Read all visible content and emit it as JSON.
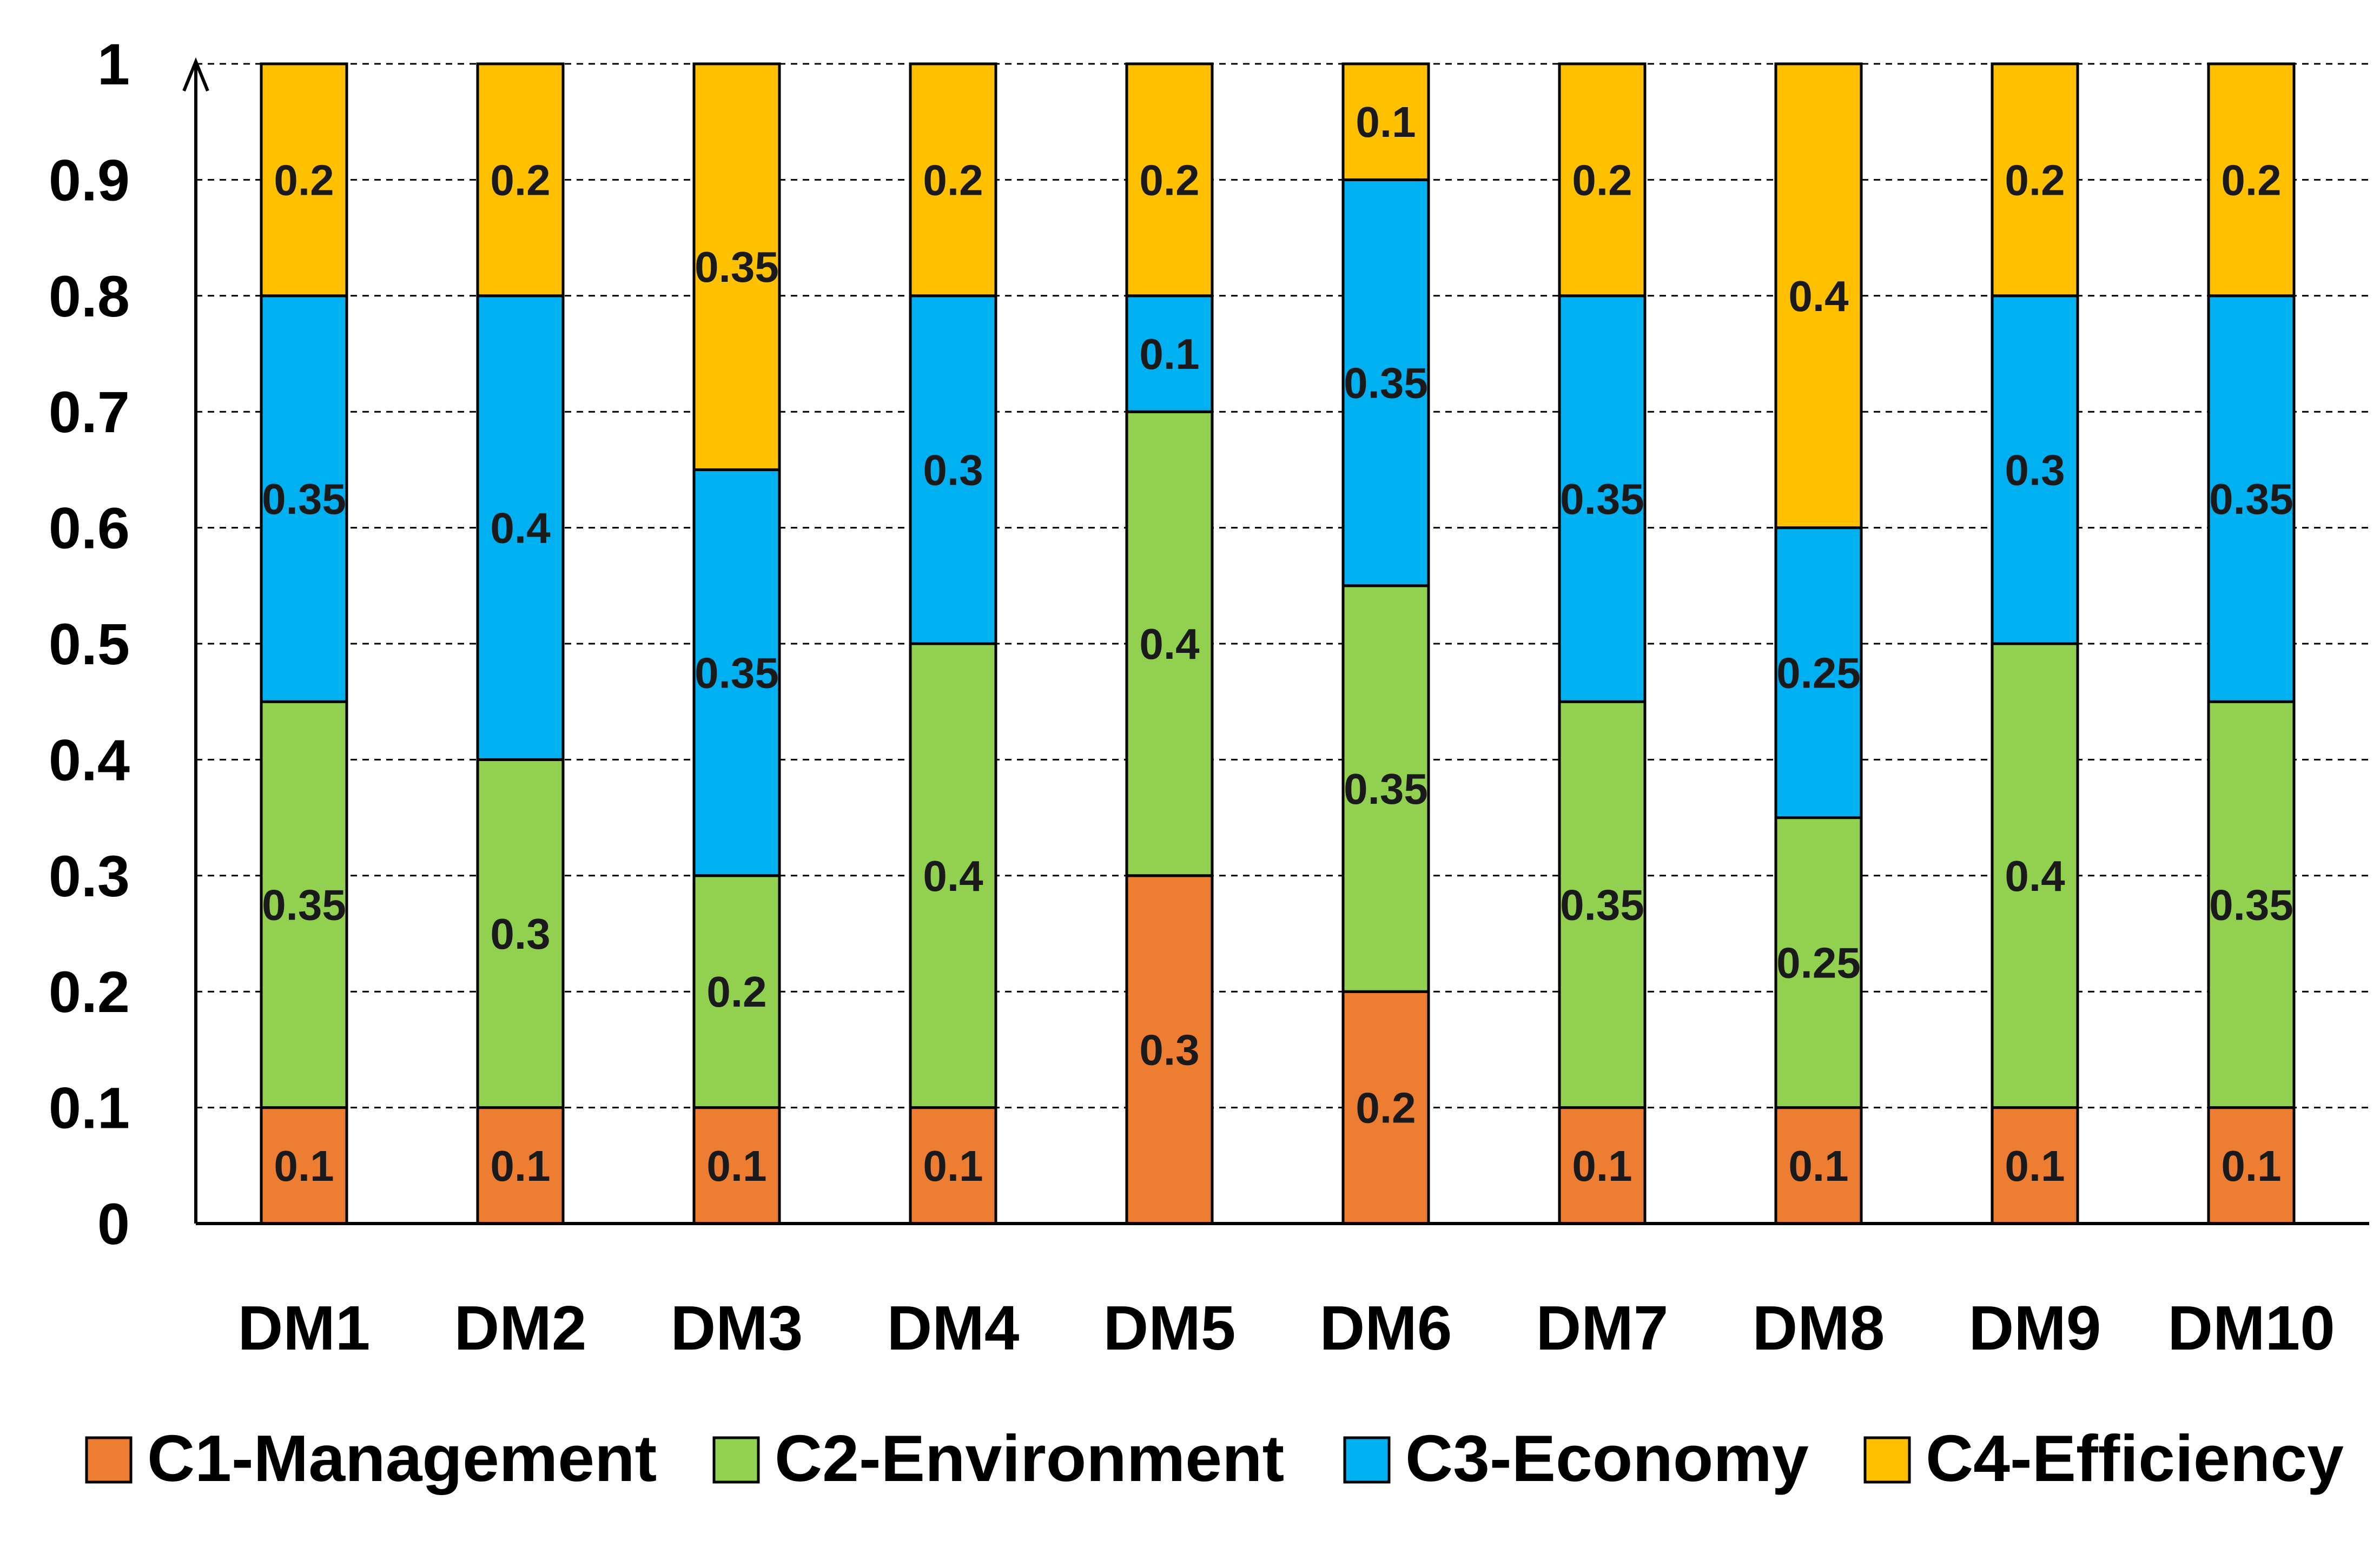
{
  "chart_data": {
    "type": "bar",
    "stacked": true,
    "title": "",
    "xlabel": "",
    "ylabel": "",
    "ylim": [
      0,
      1
    ],
    "yticks": [
      "0",
      "0.1",
      "0.2",
      "0.3",
      "0.4",
      "0.5",
      "0.6",
      "0.7",
      "0.8",
      "0.9",
      "1"
    ],
    "grid": true,
    "legend_position": "bottom",
    "categories": [
      "DM1",
      "DM2",
      "DM3",
      "DM4",
      "DM5",
      "DM6",
      "DM7",
      "DM8",
      "DM9",
      "DM10"
    ],
    "series": [
      {
        "name": "C1-Management",
        "color": "#ED7D31",
        "values": [
          0.1,
          0.1,
          0.1,
          0.1,
          0.3,
          0.2,
          0.1,
          0.1,
          0.1,
          0.1
        ]
      },
      {
        "name": "C2-Environment",
        "color": "#92D050",
        "values": [
          0.35,
          0.3,
          0.2,
          0.4,
          0.4,
          0.35,
          0.35,
          0.25,
          0.4,
          0.35
        ]
      },
      {
        "name": "C3-Economy",
        "color": "#00B0F0",
        "values": [
          0.35,
          0.4,
          0.35,
          0.3,
          0.1,
          0.35,
          0.35,
          0.25,
          0.3,
          0.35
        ]
      },
      {
        "name": "C4-Efficiency",
        "color": "#FFC000",
        "values": [
          0.2,
          0.2,
          0.35,
          0.2,
          0.2,
          0.1,
          0.2,
          0.4,
          0.2,
          0.2
        ]
      }
    ]
  }
}
